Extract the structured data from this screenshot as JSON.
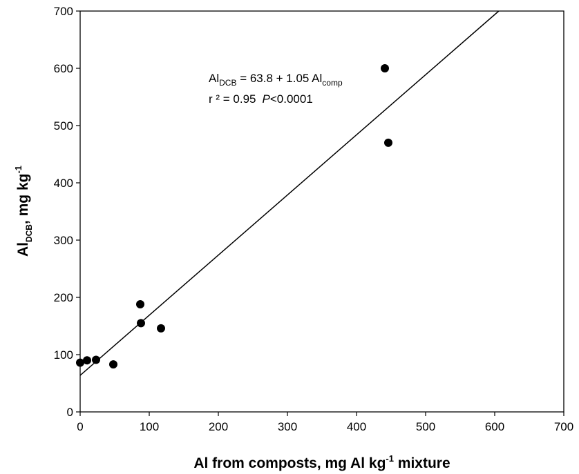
{
  "chart_data": {
    "type": "scatter",
    "xlabel": {
      "main": "Al from composts, mg Al kg",
      "sup": "-1",
      "tail": " mixture"
    },
    "ylabel": {
      "main": "Al",
      "sub": "DCB",
      "tail": ", mg kg",
      "sup": "-1"
    },
    "xlim": [
      0,
      700
    ],
    "ylim": [
      0,
      700
    ],
    "xticks": [
      0,
      100,
      200,
      300,
      400,
      500,
      600,
      700
    ],
    "yticks": [
      0,
      100,
      200,
      300,
      400,
      500,
      600,
      700
    ],
    "grid": false,
    "series": [
      {
        "points": [
          {
            "x": 0,
            "y": 86
          },
          {
            "x": 10,
            "y": 90
          },
          {
            "x": 23,
            "y": 91
          },
          {
            "x": 48,
            "y": 83
          },
          {
            "x": 87,
            "y": 188
          },
          {
            "x": 88,
            "y": 155
          },
          {
            "x": 117,
            "y": 146
          },
          {
            "x": 441,
            "y": 600
          },
          {
            "x": 446,
            "y": 470
          }
        ]
      }
    ],
    "regression": {
      "intercept": 63.8,
      "slope": 1.05
    },
    "annotation": {
      "eq_lhs": "Al",
      "eq_lhs_sub": "DCB",
      "eq_mid": " = 63.8 + 1.05 Al",
      "eq_rhs_sub": "comp",
      "stat_r2": "r ² = 0.95",
      "stat_p_italic": "P",
      "stat_p_rest": "<0.0001"
    }
  }
}
